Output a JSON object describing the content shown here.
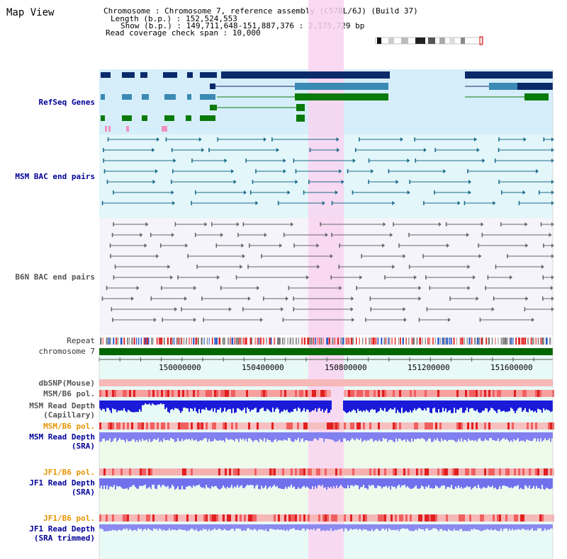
{
  "title": "Map View",
  "info": {
    "chromosome_key": "Chromosome",
    "chromosome_val": "Chromosome 7, reference assembly (C57BL/6J) (Build 37)",
    "length_key": "Length (b.p.)",
    "length_val": "152,524,553",
    "show_key": "Show (b.p.)",
    "show_val": "149,711,648-151,887,376 : 2,175,729 bp",
    "span_key": "Read coverage check span",
    "span_val": "10,000"
  },
  "tracks": {
    "refseq": "RefSeq Genes",
    "msm_bac": "MSM BAC end pairs",
    "b6n_bac": "B6N BAC end pairs",
    "repeat": "Repeat",
    "chromosome": "chromosome 7",
    "dbsnp": "dbSNP(Mouse)",
    "msm_pol": "MSM/B6 pol.",
    "msm_depth_cap_1": "MSM Read Depth",
    "msm_depth_cap_2": "(Capillary)",
    "msm_pol_2": "MSM/B6 pol.",
    "msm_depth_sra_1": "MSM Read Depth",
    "msm_depth_sra_2": "(SRA)",
    "jf1_pol": "JF1/B6 pol.",
    "jf1_depth_sra_1": "JF1 Read Depth",
    "jf1_depth_sra_2": "(SRA)",
    "jf1_pol_2": "JF1/B6 pol.",
    "jf1_depth_trim_1": "JF1 Read Depth",
    "jf1_depth_trim_2": "(SRA trimmed)"
  },
  "axis": {
    "ticks": [
      "150000000",
      "150400000",
      "150800000",
      "151200000",
      "151600000"
    ]
  },
  "colors": {
    "refseq_bg": "#d6eefa",
    "msm_bg": "#e3f6fa",
    "b6n_bg": "#f4f4fa",
    "highlight": "#f9d4f0",
    "gene_dark": "#0a2a6a",
    "gene_mid": "#3a8ab4",
    "gene_green": "#0a7a0a",
    "chromosome_bar": "#006600"
  }
}
